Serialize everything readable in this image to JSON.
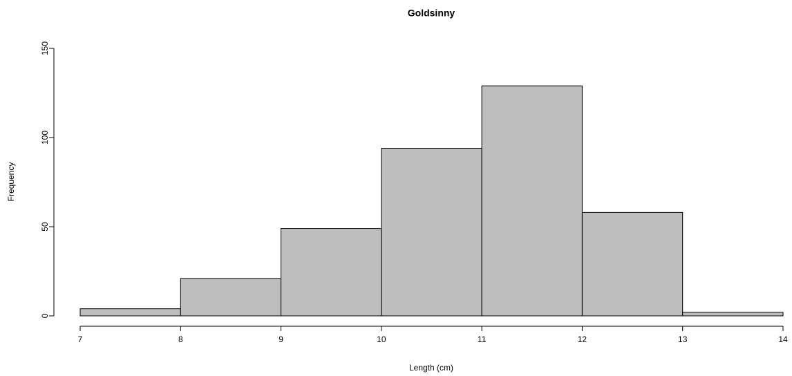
{
  "chart_data": {
    "type": "histogram",
    "title": "Goldsinny",
    "x_label": "Length (cm)",
    "y_label": "Frequency",
    "bins": [
      7,
      8,
      9,
      10,
      11,
      12,
      13,
      14
    ],
    "values": [
      4,
      21,
      49,
      94,
      129,
      58,
      2
    ],
    "color": "#bebebe",
    "xlim": [
      7,
      14
    ],
    "xticks": [
      7,
      8,
      9,
      10,
      11,
      12,
      13,
      14
    ],
    "ylim": [
      0,
      150
    ],
    "yticks": [
      0,
      50,
      100,
      150
    ],
    "grid": false
  }
}
